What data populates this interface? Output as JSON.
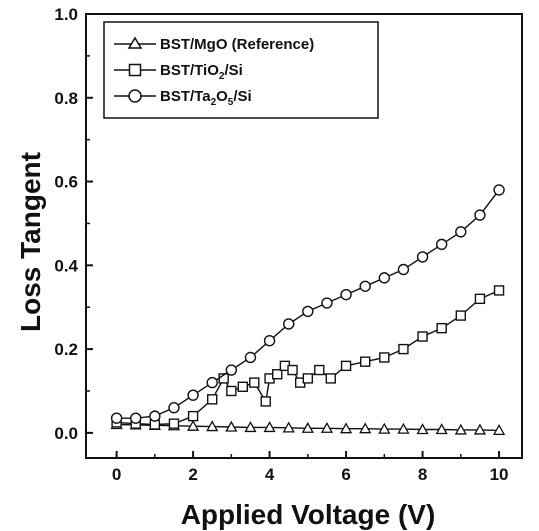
{
  "chart_data": {
    "type": "scatter",
    "title": "",
    "xlabel": "Applied Voltage (V)",
    "ylabel": "Loss Tangent",
    "xlim": [
      -0.8,
      10.6
    ],
    "ylim": [
      -0.06,
      1.0
    ],
    "x_ticks": [
      0,
      2,
      4,
      6,
      8,
      10
    ],
    "x_tick_labels": [
      "0",
      "2",
      "4",
      "6",
      "8",
      "10"
    ],
    "y_ticks": [
      0.0,
      0.2,
      0.4,
      0.6,
      0.8,
      1.0
    ],
    "y_tick_labels": [
      "0.0",
      "0.2",
      "0.4",
      "0.6",
      "0.8",
      "1.0"
    ],
    "legend_position": "top-left",
    "series": [
      {
        "name": "BST/MgO (Reference)",
        "marker": "triangle",
        "x": [
          0,
          0.5,
          1,
          1.5,
          2,
          2.5,
          3,
          3.5,
          4,
          4.5,
          5,
          5.5,
          6,
          6.5,
          7,
          7.5,
          8,
          8.5,
          9,
          9.5,
          10
        ],
        "y": [
          0.02,
          0.019,
          0.018,
          0.017,
          0.016,
          0.015,
          0.014,
          0.013,
          0.013,
          0.012,
          0.011,
          0.011,
          0.01,
          0.01,
          0.009,
          0.009,
          0.008,
          0.008,
          0.007,
          0.007,
          0.006
        ]
      },
      {
        "name": "BST/TiO2/Si",
        "name_main": "BST/TiO",
        "name_sub": "2",
        "name_tail": "/Si",
        "marker": "square",
        "x": [
          0,
          0.5,
          1,
          1.5,
          2,
          2.5,
          2.8,
          3,
          3.3,
          3.6,
          3.9,
          4,
          4.2,
          4.4,
          4.6,
          4.8,
          5,
          5.3,
          5.6,
          6,
          6.5,
          7,
          7.5,
          8,
          8.5,
          9,
          9.5,
          10
        ],
        "y": [
          0.025,
          0.022,
          0.02,
          0.022,
          0.04,
          0.08,
          0.13,
          0.1,
          0.11,
          0.12,
          0.075,
          0.13,
          0.14,
          0.16,
          0.15,
          0.12,
          0.13,
          0.15,
          0.13,
          0.16,
          0.17,
          0.18,
          0.2,
          0.23,
          0.25,
          0.28,
          0.32,
          0.34
        ]
      },
      {
        "name": "BST/Ta2O5/Si",
        "name_main": "BST/Ta",
        "name_sub1": "2",
        "name_mid": "O",
        "name_sub2": "5",
        "name_tail": "/Si",
        "marker": "circle",
        "x": [
          0,
          0.5,
          1,
          1.5,
          2,
          2.5,
          3,
          3.5,
          4,
          4.5,
          5,
          5.5,
          6,
          6.5,
          7,
          7.5,
          8,
          8.5,
          9,
          9.5,
          10
        ],
        "y": [
          0.035,
          0.035,
          0.04,
          0.06,
          0.09,
          0.12,
          0.15,
          0.18,
          0.22,
          0.26,
          0.29,
          0.31,
          0.33,
          0.35,
          0.37,
          0.39,
          0.42,
          0.45,
          0.48,
          0.52,
          0.58
        ]
      }
    ]
  }
}
